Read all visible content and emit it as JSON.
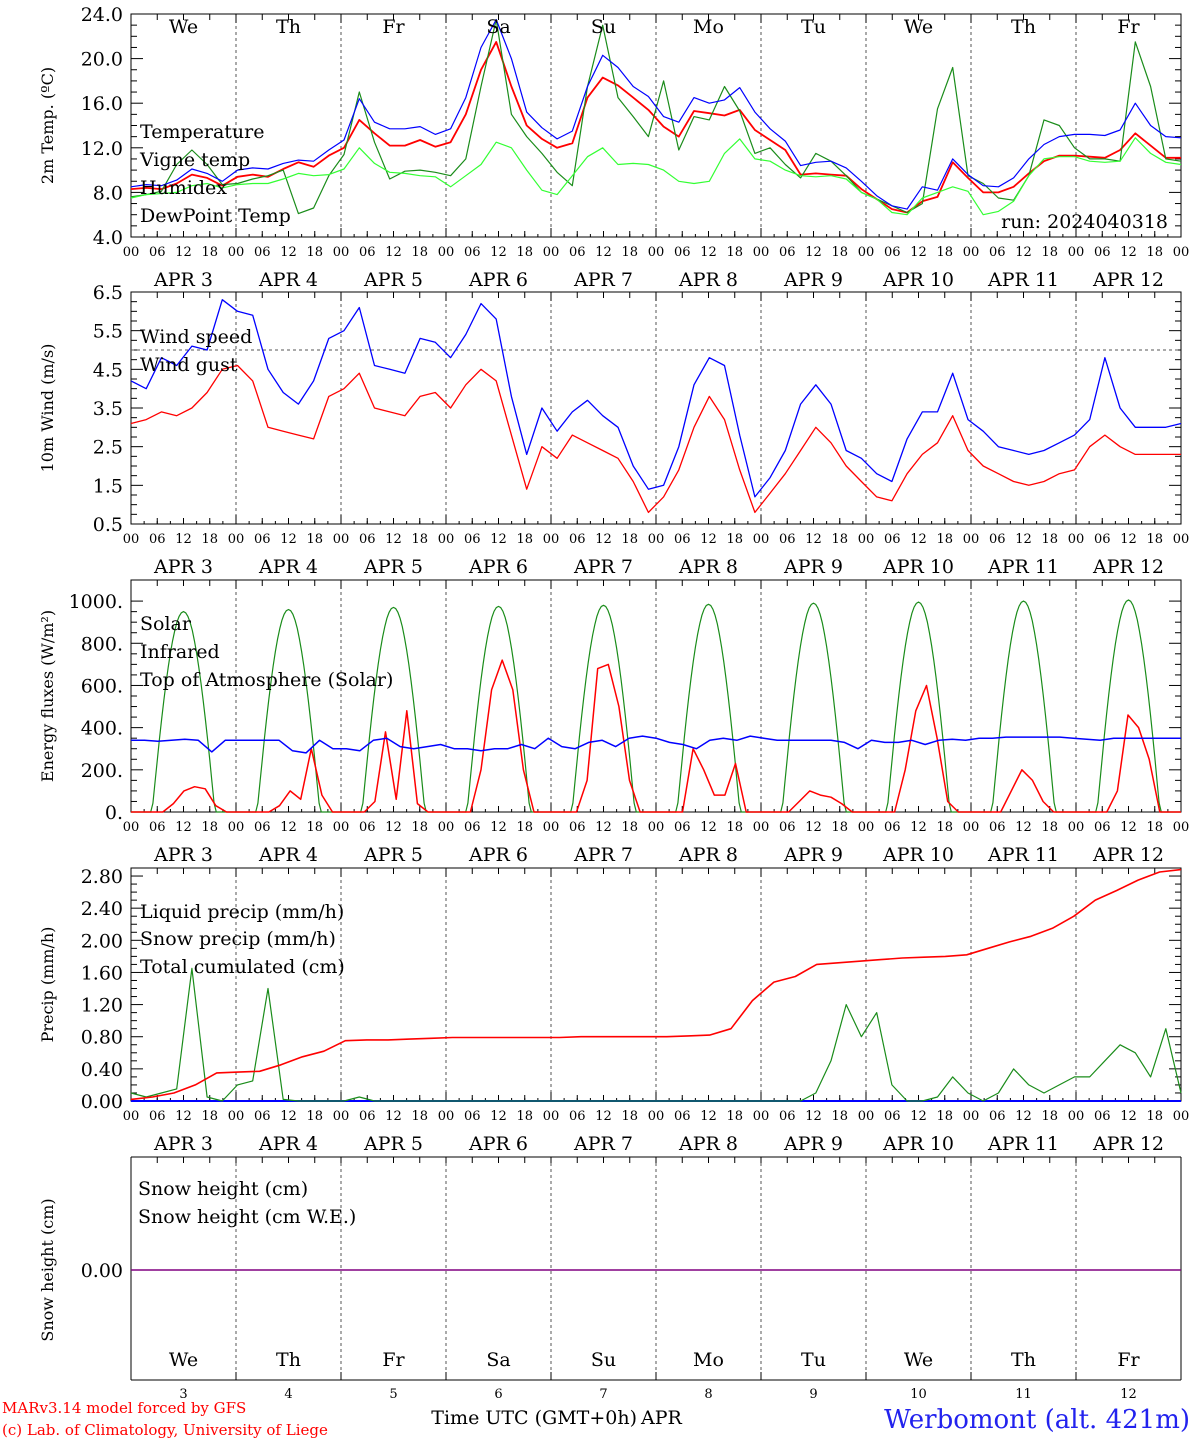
{
  "chart_data": [
    {
      "type": "line",
      "ylabel": "2m Temp. (ºC)",
      "ylim": [
        4,
        24
      ],
      "yticks": [
        "4.0",
        "8.0",
        "12.0",
        "16.0",
        "20.0",
        "24.0"
      ],
      "annotation": "run: 2024040318",
      "day_names": [
        "We",
        "Th",
        "Fr",
        "Sa",
        "Su",
        "Mo",
        "Tu",
        "We",
        "Th",
        "Fr"
      ],
      "series": [
        {
          "name": "Temperature",
          "color": "#ff0000",
          "values": [
            8.3,
            8.4,
            8.3,
            8.8,
            9.6,
            9.3,
            8.6,
            9.4,
            9.6,
            9.4,
            10.1,
            10.7,
            10.3,
            11.3,
            12.0,
            14.5,
            13.3,
            12.2,
            12.2,
            12.7,
            12.1,
            12.5,
            15.0,
            19.0,
            21.5,
            17.5,
            14.0,
            12.8,
            12.0,
            12.4,
            16.5,
            18.3,
            17.6,
            16.5,
            15.4,
            13.9,
            13.0,
            15.3,
            15.1,
            14.9,
            15.4,
            13.6,
            12.7,
            11.8,
            9.6,
            9.7,
            9.6,
            9.5,
            8.3,
            7.4,
            6.5,
            6.2,
            7.2,
            7.6,
            10.7,
            9.3,
            8.0,
            8.0,
            8.5,
            9.7,
            10.8,
            11.3,
            11.3,
            11.2,
            11.1,
            11.8,
            13.3,
            12.2,
            11.1,
            11.1
          ]
        },
        {
          "name": "Vigne temp",
          "color": "#1a8c1a",
          "values": [
            7.6,
            7.8,
            8.1,
            10.5,
            11.8,
            10.5,
            8.7,
            8.8,
            9.2,
            9.5,
            10.0,
            6.1,
            6.6,
            9.5,
            11.4,
            17.0,
            12.5,
            9.2,
            9.9,
            10.0,
            9.8,
            9.5,
            11.0,
            17.5,
            23.5,
            15.0,
            13.0,
            11.5,
            9.8,
            8.6,
            17.5,
            23.0,
            16.5,
            14.8,
            13.0,
            18.0,
            11.8,
            14.8,
            14.5,
            17.5,
            15.3,
            11.5,
            12.0,
            10.5,
            9.3,
            11.5,
            10.8,
            9.5,
            8.0,
            7.4,
            6.8,
            6.2,
            7.0,
            15.5,
            19.2,
            9.5,
            8.8,
            7.5,
            7.3,
            9.5,
            14.5,
            14.0,
            12.0,
            11.0,
            11.0,
            10.8,
            21.5,
            17.5,
            11.0,
            10.8
          ]
        },
        {
          "name": "Humidex",
          "color": "#0000ff",
          "values": [
            8.5,
            8.7,
            8.6,
            9.1,
            10.1,
            9.7,
            9.0,
            10.0,
            10.2,
            10.1,
            10.6,
            10.9,
            10.8,
            11.8,
            12.7,
            16.4,
            14.3,
            13.7,
            13.7,
            13.9,
            13.2,
            13.7,
            16.5,
            21.0,
            23.5,
            20.0,
            15.2,
            13.8,
            12.8,
            13.5,
            17.5,
            20.3,
            19.2,
            17.5,
            16.6,
            14.8,
            14.3,
            16.5,
            16.0,
            16.3,
            17.4,
            15.2,
            13.7,
            12.6,
            10.4,
            10.7,
            10.8,
            10.2,
            9.0,
            7.7,
            6.8,
            6.5,
            8.5,
            8.2,
            11.0,
            9.6,
            8.6,
            8.5,
            9.3,
            11.0,
            12.3,
            13.0,
            13.2,
            13.2,
            13.1,
            13.6,
            16.0,
            14.0,
            13.0,
            12.9
          ]
        },
        {
          "name": "DewPoint Temp",
          "color": "#33ff33",
          "values": [
            7.5,
            7.8,
            7.9,
            8.0,
            8.6,
            8.8,
            8.4,
            8.7,
            8.8,
            8.8,
            9.2,
            9.7,
            9.5,
            9.6,
            10.1,
            12.0,
            10.6,
            9.8,
            9.7,
            9.5,
            9.4,
            8.5,
            9.5,
            10.5,
            12.5,
            12.0,
            10.0,
            8.2,
            7.8,
            9.5,
            11.2,
            12.0,
            10.5,
            10.6,
            10.5,
            10.0,
            9.0,
            8.8,
            9.0,
            11.5,
            12.8,
            11.0,
            10.8,
            10.0,
            9.5,
            9.4,
            9.5,
            9.2,
            8.0,
            7.4,
            6.2,
            6.0,
            7.5,
            8.0,
            8.5,
            8.1,
            6.0,
            6.3,
            7.2,
            9.5,
            11.0,
            11.2,
            11.2,
            10.8,
            10.7,
            10.8,
            12.9,
            11.5,
            10.7,
            10.5
          ]
        }
      ]
    },
    {
      "type": "line",
      "ylabel": "10m Wind (m/s)",
      "ylim": [
        0.5,
        6.5
      ],
      "yticks": [
        "0.5",
        "1.5",
        "2.5",
        "3.5",
        "4.5",
        "5.5",
        "6.5"
      ],
      "refline": 5.0,
      "series": [
        {
          "name": "Wind speed",
          "color": "#ff0000",
          "values": [
            3.1,
            3.2,
            3.4,
            3.3,
            3.5,
            3.9,
            4.5,
            4.6,
            4.2,
            3.0,
            2.9,
            2.8,
            2.7,
            3.8,
            4.0,
            4.4,
            3.5,
            3.4,
            3.3,
            3.8,
            3.9,
            3.5,
            4.1,
            4.5,
            4.2,
            2.8,
            1.4,
            2.5,
            2.2,
            2.8,
            2.6,
            2.4,
            2.2,
            1.6,
            0.8,
            1.2,
            1.9,
            3.0,
            3.8,
            3.2,
            1.9,
            0.8,
            1.3,
            1.8,
            2.4,
            3.0,
            2.6,
            2.0,
            1.6,
            1.2,
            1.1,
            1.8,
            2.3,
            2.6,
            3.3,
            2.4,
            2.0,
            1.8,
            1.6,
            1.5,
            1.6,
            1.8,
            1.9,
            2.5,
            2.8,
            2.5,
            2.3,
            2.3,
            2.3,
            2.3
          ]
        },
        {
          "name": "Wind gust",
          "color": "#0000ff",
          "values": [
            4.2,
            4.0,
            4.8,
            4.6,
            5.1,
            5.0,
            6.3,
            6.0,
            5.9,
            4.5,
            3.9,
            3.6,
            4.2,
            5.3,
            5.5,
            6.1,
            4.6,
            4.5,
            4.4,
            5.3,
            5.2,
            4.8,
            5.4,
            6.2,
            5.8,
            3.8,
            2.3,
            3.5,
            2.9,
            3.4,
            3.7,
            3.3,
            3.0,
            2.0,
            1.4,
            1.5,
            2.5,
            4.1,
            4.8,
            4.6,
            2.8,
            1.2,
            1.7,
            2.4,
            3.6,
            4.1,
            3.6,
            2.4,
            2.2,
            1.8,
            1.6,
            2.7,
            3.4,
            3.4,
            4.4,
            3.2,
            2.9,
            2.5,
            2.4,
            2.3,
            2.4,
            2.6,
            2.8,
            3.2,
            4.8,
            3.5,
            3.0,
            3.0,
            3.0,
            3.1
          ]
        }
      ]
    },
    {
      "type": "line",
      "ylabel": "Energy fluxes (W/m²)",
      "ylim": [
        0,
        1100
      ],
      "yticks": [
        "0.",
        "200.",
        "400.",
        "600.",
        "800.",
        "1000."
      ],
      "series": [
        {
          "name": "Solar",
          "color": "#ff0000",
          "values": [
            0,
            0,
            0,
            0,
            40,
            100,
            120,
            110,
            30,
            0,
            0,
            0,
            0,
            0,
            30,
            100,
            60,
            300,
            80,
            0,
            0,
            0,
            0,
            50,
            380,
            60,
            480,
            40,
            0,
            0,
            0,
            0,
            0,
            200,
            580,
            720,
            580,
            200,
            0,
            0,
            0,
            0,
            0,
            150,
            680,
            700,
            500,
            150,
            0,
            0,
            0,
            0,
            0,
            300,
            200,
            80,
            80,
            230,
            0,
            0,
            0,
            0,
            0,
            50,
            100,
            80,
            70,
            40,
            0,
            0,
            0,
            0,
            0,
            200,
            480,
            600,
            350,
            50,
            0,
            0,
            0,
            0,
            0,
            100,
            200,
            150,
            50,
            0,
            0,
            0,
            0,
            0,
            0,
            100,
            460,
            400,
            250,
            0,
            0,
            0
          ]
        },
        {
          "name": "Infrared",
          "color": "#0000ff",
          "values": [
            340,
            340,
            335,
            340,
            345,
            340,
            285,
            340,
            340,
            340,
            340,
            340,
            290,
            280,
            340,
            300,
            300,
            290,
            340,
            350,
            310,
            300,
            310,
            320,
            300,
            300,
            290,
            300,
            300,
            320,
            300,
            350,
            310,
            300,
            330,
            340,
            310,
            350,
            360,
            350,
            330,
            320,
            300,
            340,
            350,
            340,
            360,
            350,
            340,
            340,
            340,
            340,
            340,
            330,
            300,
            340,
            330,
            330,
            340,
            320,
            340,
            345,
            340,
            350,
            350,
            355,
            355,
            355,
            355,
            355,
            350,
            345,
            340,
            350,
            350,
            350,
            350,
            350,
            350
          ]
        },
        {
          "name": "Top of Atmosphere (Solar)",
          "color": "#1a8c1a",
          "peak": [
            950,
            960,
            970,
            975,
            980,
            985,
            990,
            995,
            1000,
            1005
          ]
        }
      ]
    },
    {
      "type": "line",
      "ylabel": "Precip (mm/h)",
      "ylim": [
        0,
        2.9
      ],
      "yticks": [
        "0.00",
        "0.40",
        "0.80",
        "1.20",
        "1.60",
        "2.00",
        "2.40",
        "2.80"
      ],
      "series": [
        {
          "name": "Liquid precip (mm/h)",
          "color": "#1a8c1a",
          "values": [
            0.1,
            0.05,
            0.1,
            0.15,
            1.65,
            0.05,
            0,
            0.2,
            0.25,
            1.4,
            0.02,
            0,
            0,
            0,
            0,
            0.05,
            0,
            0,
            0,
            0,
            0,
            0,
            0,
            0,
            0,
            0,
            0,
            0,
            0,
            0,
            0,
            0,
            0,
            0,
            0,
            0,
            0,
            0,
            0,
            0,
            0,
            0,
            0,
            0,
            0,
            0.1,
            0.5,
            1.2,
            0.8,
            1.1,
            0.2,
            0,
            0,
            0.05,
            0.3,
            0.1,
            0,
            0.1,
            0.4,
            0.2,
            0.1,
            0.2,
            0.3,
            0.3,
            0.5,
            0.7,
            0.6,
            0.3,
            0.9,
            0.1
          ]
        },
        {
          "name": "Snow precip (mm/h)",
          "color": "#0000ff",
          "values": [
            0,
            0
          ]
        },
        {
          "name": "Total cumulated (cm)",
          "color": "#ff0000",
          "values": [
            0.02,
            0.05,
            0.1,
            0.2,
            0.35,
            0.36,
            0.37,
            0.45,
            0.55,
            0.62,
            0.75,
            0.76,
            0.76,
            0.77,
            0.78,
            0.79,
            0.79,
            0.79,
            0.79,
            0.79,
            0.79,
            0.8,
            0.8,
            0.8,
            0.8,
            0.8,
            0.81,
            0.82,
            0.9,
            1.25,
            1.48,
            1.55,
            1.7,
            1.72,
            1.74,
            1.76,
            1.78,
            1.79,
            1.8,
            1.82,
            1.9,
            1.98,
            2.05,
            2.15,
            2.3,
            2.5,
            2.62,
            2.75,
            2.85,
            2.88
          ]
        }
      ]
    },
    {
      "type": "line",
      "ylabel": "Snow height (cm)",
      "yticks": [
        "0.00"
      ],
      "series": [
        {
          "name": "Snow height (cm)",
          "color": "#ff0000",
          "values": [
            0,
            0
          ]
        },
        {
          "name": "Snow height (cm W.E.)",
          "color": "#0000ff",
          "values": [
            0,
            0
          ]
        }
      ]
    }
  ],
  "x_axis": {
    "hour_ticks": [
      "00",
      "06",
      "12",
      "18"
    ],
    "end_tick": "00",
    "day_labels": [
      "APR  3",
      "APR  4",
      "APR  5",
      "APR  6",
      "APR  7",
      "APR  8",
      "APR  9",
      "APR 10",
      "APR 11",
      "APR 12"
    ],
    "bottom_day_names": [
      "We",
      "Th",
      "Fr",
      "Sa",
      "Su",
      "Mo",
      "Tu",
      "We",
      "Th",
      "Fr"
    ],
    "bottom_day_numbers": [
      "3",
      "4",
      "5",
      "6",
      "7",
      "8",
      "9",
      "10",
      "11",
      "12"
    ],
    "weekend_color": "#ff0000",
    "title": "Time UTC (GMT+0h)",
    "month": "APR"
  },
  "footer": {
    "credit1": "MARv3.14 model forced by GFS",
    "credit2": "(c) Lab. of Climatology, University of Liege",
    "station": "Werbomont (alt. 421m)"
  }
}
